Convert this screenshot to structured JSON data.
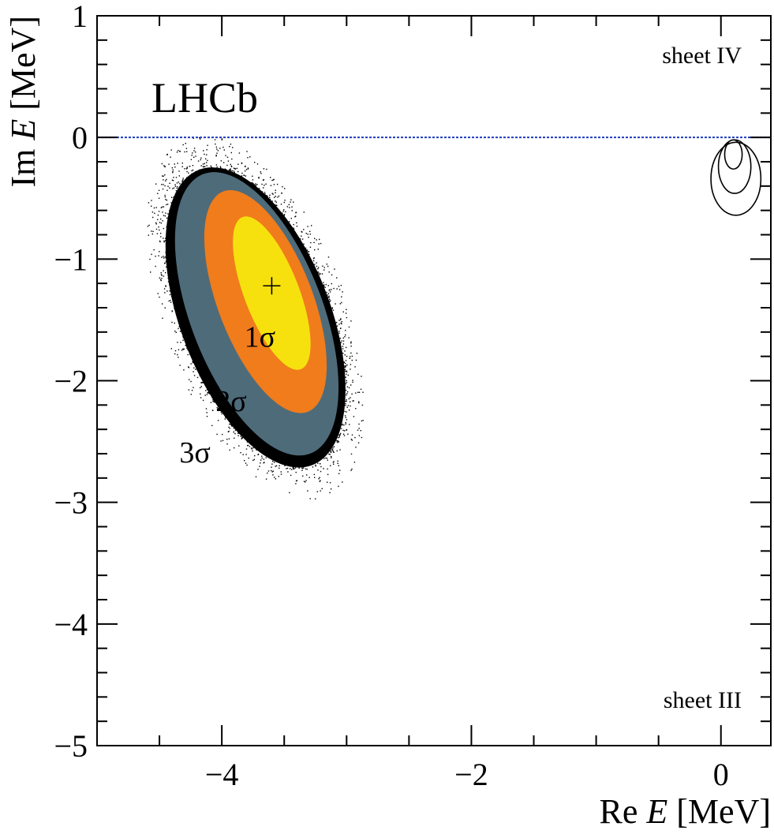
{
  "chart_data": {
    "type": "contour",
    "xlabel_pre": "Re ",
    "xlabel_var": "E",
    "xlabel_post": " [MeV]",
    "ylabel_pre": "Im ",
    "ylabel_var": "E",
    "ylabel_post": " [MeV]",
    "xlim": [
      -5.0,
      0.4
    ],
    "ylim": [
      -5.0,
      1.0
    ],
    "xticks_major": [
      -4,
      -2,
      0
    ],
    "xtick_labels": [
      "−4",
      "−2",
      "0"
    ],
    "yticks_major": [
      1,
      0,
      -1,
      -2,
      -3,
      -4,
      -5
    ],
    "ytick_labels": [
      "1",
      "0",
      "−1",
      "−2",
      "−3",
      "−4",
      "−5"
    ],
    "experiment_label": "LHCb",
    "sheet_labels": [
      {
        "text": "sheet IV",
        "region": "upper half-plane"
      },
      {
        "text": "sheet III",
        "region": "lower half-plane"
      }
    ],
    "reference_line": {
      "y": 0,
      "style": "dotted",
      "color": "#1f3cbf"
    },
    "best_fit": {
      "x": -3.6,
      "y": -1.22,
      "marker": "plus"
    },
    "contours": [
      {
        "level": "3σ",
        "label": "3σ",
        "color": "#4e6b7a",
        "center": [
          -3.72,
          -1.45
        ],
        "half_axes": [
          0.53,
          1.23
        ],
        "tilt_deg": -21
      },
      {
        "level": "2σ",
        "label": "2σ",
        "color": "#f07c1c",
        "center": [
          -3.65,
          -1.35
        ],
        "half_axes": [
          0.38,
          0.97
        ],
        "tilt_deg": -21
      },
      {
        "level": "1σ",
        "label": "1σ",
        "color": "#f6e10f",
        "center": [
          -3.6,
          -1.28
        ],
        "half_axes": [
          0.22,
          0.67
        ],
        "tilt_deg": -21
      }
    ],
    "scatter_outline": {
      "color": "#000000",
      "center": [
        -3.73,
        -1.48
      ],
      "half_axes": [
        0.6,
        1.3
      ],
      "tilt_deg": -21
    },
    "secondary_contours": [
      {
        "center": [
          0.12,
          -0.34
        ],
        "half_axes": [
          0.2,
          0.3
        ]
      },
      {
        "center": [
          0.11,
          -0.24
        ],
        "half_axes": [
          0.13,
          0.22
        ]
      },
      {
        "center": [
          0.1,
          -0.14
        ],
        "half_axes": [
          0.07,
          0.12
        ]
      }
    ]
  }
}
